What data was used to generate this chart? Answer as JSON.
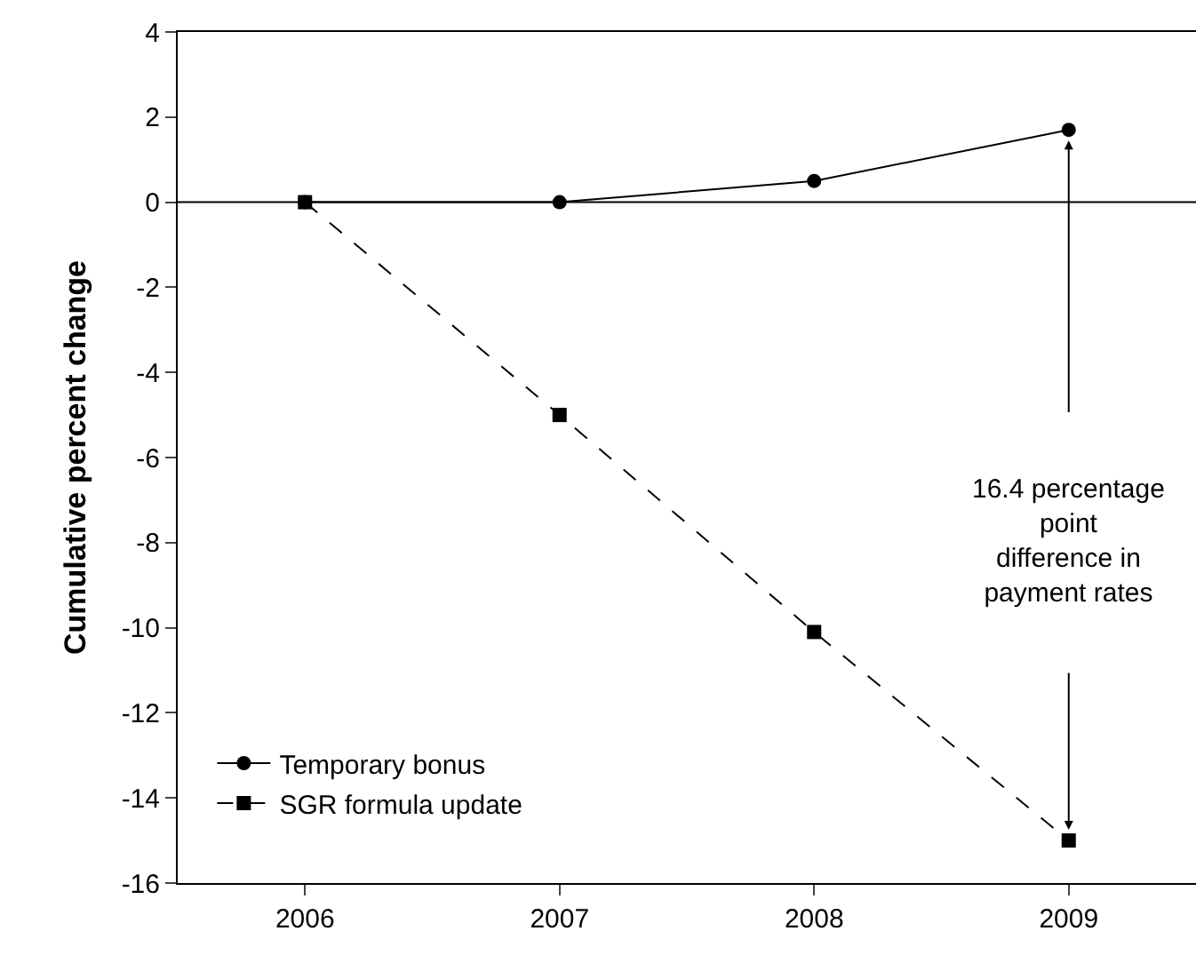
{
  "chart_data": {
    "type": "line",
    "ylabel": "Cumulative percent change",
    "x": [
      2006,
      2007,
      2008,
      2009
    ],
    "xlim": [
      2005.5,
      2009.5
    ],
    "xticks": [
      2006,
      2007,
      2008,
      2009
    ],
    "ylim": [
      -16,
      4
    ],
    "yticks": [
      -16,
      -14,
      -12,
      -10,
      -8,
      -6,
      -4,
      -2,
      0,
      2,
      4
    ],
    "series": [
      {
        "name": "Temporary bonus",
        "color": "#000000",
        "values": [
          0,
          0,
          0.5,
          1.7
        ],
        "marker": "circle",
        "line_style": "solid"
      },
      {
        "name": "SGR formula update",
        "color": "#000000",
        "values": [
          0,
          -5,
          -10.1,
          -15
        ],
        "marker": "square",
        "line_style": "dashed"
      }
    ],
    "ref_lines": [
      {
        "axis": "y",
        "value": 0,
        "color": "#000000"
      }
    ],
    "annotations": [
      "16.4 percentage\npoint\ndifference in\npayment rates"
    ],
    "legend": "bottom left",
    "grid": false
  }
}
